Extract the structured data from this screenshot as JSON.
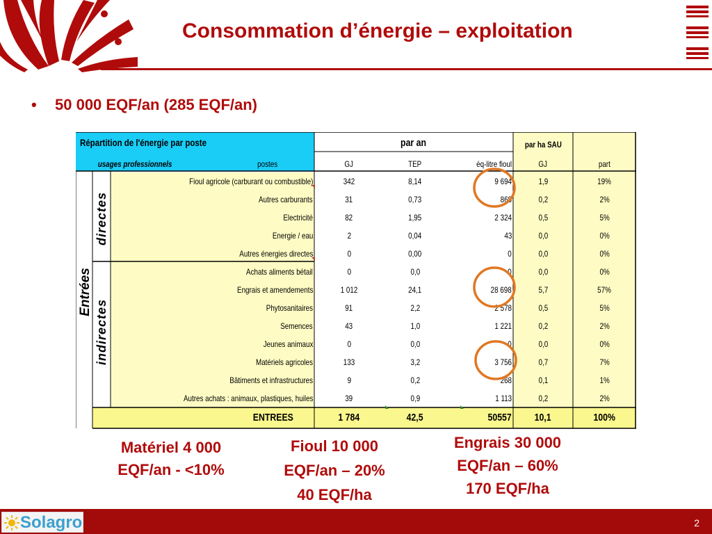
{
  "slide": {
    "title": "Consommation d’énergie – exploitation",
    "bullet": "50 000 EQF/an (285 EQF/an)",
    "page_number": "2",
    "footer_logo": "Solagro"
  },
  "table": {
    "title": "Répartition de l'énergie par poste",
    "subtitle_usages": "usages professionnels",
    "col_postes": "postes",
    "group_par_an": "par an",
    "group_par_ha": "par ha SAU",
    "col_gj": "GJ",
    "col_tep": "TEP",
    "col_eqlitre": "éq-litre fioul",
    "col_gj_ha": "GJ",
    "col_part": "part",
    "side_main": "Entrées",
    "side_directes": "directes",
    "side_indirectes": "indirectes",
    "rows": [
      {
        "label": "Fioul agricole (carburant ou combustible)",
        "gj": "342",
        "tep": "8,14",
        "eq": "9 694",
        "gjha": "1,9",
        "part": "19%"
      },
      {
        "label": "Autres carburants",
        "gj": "31",
        "tep": "0,73",
        "eq": "868",
        "gjha": "0,2",
        "part": "2%"
      },
      {
        "label": "Electricité",
        "gj": "82",
        "tep": "1,95",
        "eq": "2 324",
        "gjha": "0,5",
        "part": "5%"
      },
      {
        "label": "Energie / eau",
        "gj": "2",
        "tep": "0,04",
        "eq": "43",
        "gjha": "0,0",
        "part": "0%"
      },
      {
        "label": "Autres énergies directes",
        "gj": "0",
        "tep": "0,00",
        "eq": "0",
        "gjha": "0,0",
        "part": "0%"
      },
      {
        "label": "Achats aliments bétail",
        "gj": "0",
        "tep": "0,0",
        "eq": "0",
        "gjha": "0,0",
        "part": "0%"
      },
      {
        "label": "Engrais et amendements",
        "gj": "1 012",
        "tep": "24,1",
        "eq": "28 698",
        "gjha": "5,7",
        "part": "57%"
      },
      {
        "label": "Phytosanitaires",
        "gj": "91",
        "tep": "2,2",
        "eq": "2 578",
        "gjha": "0,5",
        "part": "5%"
      },
      {
        "label": "Semences",
        "gj": "43",
        "tep": "1,0",
        "eq": "1 221",
        "gjha": "0,2",
        "part": "2%"
      },
      {
        "label": "Jeunes animaux",
        "gj": "0",
        "tep": "0,0",
        "eq": "0",
        "gjha": "0,0",
        "part": "0%"
      },
      {
        "label": "Matériels agricoles",
        "gj": "133",
        "tep": "3,2",
        "eq": "3 756",
        "gjha": "0,7",
        "part": "7%"
      },
      {
        "label": "Bâtiments et infrastructures",
        "gj": "9",
        "tep": "0,2",
        "eq": "268",
        "gjha": "0,1",
        "part": "1%"
      },
      {
        "label": "Autres achats : animaux, plastiques, huiles",
        "gj": "39",
        "tep": "0,9",
        "eq": "1 113",
        "gjha": "0,2",
        "part": "2%"
      }
    ],
    "total": {
      "label": "ENTREES",
      "gj": "1 784",
      "tep": "42,5",
      "eq": "50557",
      "gjha": "10,1",
      "part": "100%"
    }
  },
  "annotations": {
    "materiel_line1": "Matériel 4 000",
    "materiel_line2": "EQF/an - <10%",
    "fioul_line1": "Fioul 10 000",
    "fioul_line2": "EQF/an – 20%",
    "fioul_line3": "40 EQF/ha",
    "engrais_line1": "Engrais 30 000",
    "engrais_line2": "EQF/an – 60%",
    "engrais_line3": "170 EQF/ha"
  },
  "colors": {
    "brand_red": "#b00b0b",
    "header_cyan": "#19cdf7",
    "row_yellow": "#fefcc4",
    "total_yellow": "#faf78e",
    "circle_orange": "#e07823"
  }
}
